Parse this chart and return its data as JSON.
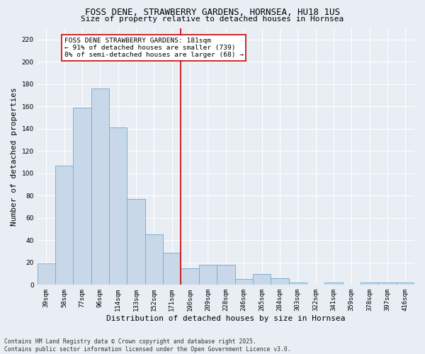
{
  "title": "FOSS DENE, STRAWBERRY GARDENS, HORNSEA, HU18 1US",
  "subtitle": "Size of property relative to detached houses in Hornsea",
  "xlabel": "Distribution of detached houses by size in Hornsea",
  "ylabel": "Number of detached properties",
  "bar_labels": [
    "39sqm",
    "58sqm",
    "77sqm",
    "96sqm",
    "114sqm",
    "133sqm",
    "152sqm",
    "171sqm",
    "190sqm",
    "209sqm",
    "228sqm",
    "246sqm",
    "265sqm",
    "284sqm",
    "303sqm",
    "322sqm",
    "341sqm",
    "359sqm",
    "378sqm",
    "397sqm",
    "416sqm"
  ],
  "bar_values": [
    19,
    107,
    159,
    176,
    141,
    77,
    45,
    29,
    15,
    18,
    18,
    5,
    10,
    6,
    2,
    0,
    2,
    0,
    2,
    2,
    2
  ],
  "bar_color": "#c8d8e8",
  "bar_edge_color": "#7bafd4",
  "vline_x_index": 7.5,
  "vline_color": "#cc0000",
  "ylim": [
    0,
    230
  ],
  "yticks": [
    0,
    20,
    40,
    60,
    80,
    100,
    120,
    140,
    160,
    180,
    200,
    220
  ],
  "annotation_text": "FOSS DENE STRAWBERRY GARDENS: 181sqm\n← 91% of detached houses are smaller (739)\n8% of semi-detached houses are larger (68) →",
  "bg_color": "#e8eef4",
  "plot_bg_color": "#e8eef4",
  "footer_text": "Contains HM Land Registry data © Crown copyright and database right 2025.\nContains public sector information licensed under the Open Government Licence v3.0.",
  "title_fontsize": 9,
  "subtitle_fontsize": 8,
  "tick_fontsize": 6.5,
  "label_fontsize": 8,
  "annotation_fontsize": 6.8,
  "footer_fontsize": 5.8
}
